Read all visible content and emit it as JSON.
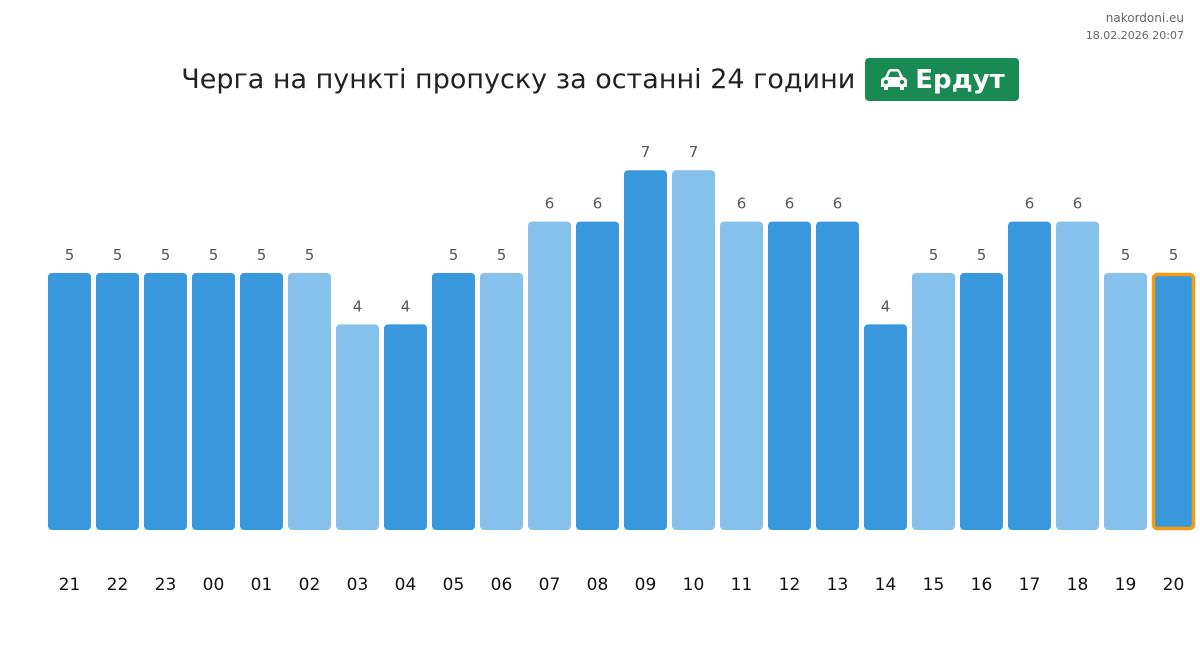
{
  "source": {
    "site": "nakordoni.eu",
    "timestamp": "18.02.2026 20:07"
  },
  "heading": {
    "title": "Черга на пункті пропуску за останні 24 години",
    "crossing": "Ердут"
  },
  "badge_icon": "car-icon",
  "colors": {
    "dark": "#3898db",
    "light": "#85c1ea",
    "highlight_border": "#f39c12",
    "badge": "#1a8a55"
  },
  "chart_data": {
    "type": "bar",
    "categories": [
      "21",
      "22",
      "23",
      "00",
      "01",
      "02",
      "03",
      "04",
      "05",
      "06",
      "07",
      "08",
      "09",
      "10",
      "11",
      "12",
      "13",
      "14",
      "15",
      "16",
      "17",
      "18",
      "19",
      "20"
    ],
    "values": [
      5,
      5,
      5,
      5,
      5,
      5,
      4,
      4,
      5,
      5,
      6,
      6,
      7,
      7,
      6,
      6,
      6,
      4,
      5,
      5,
      6,
      6,
      5,
      5
    ],
    "shade": [
      "dark",
      "dark",
      "dark",
      "dark",
      "dark",
      "light",
      "light",
      "dark",
      "dark",
      "light",
      "light",
      "dark",
      "dark",
      "light",
      "light",
      "dark",
      "dark",
      "dark",
      "light",
      "dark",
      "dark",
      "light",
      "light",
      "dark"
    ],
    "highlighted_category": "20",
    "ylim": [
      0,
      7
    ]
  }
}
